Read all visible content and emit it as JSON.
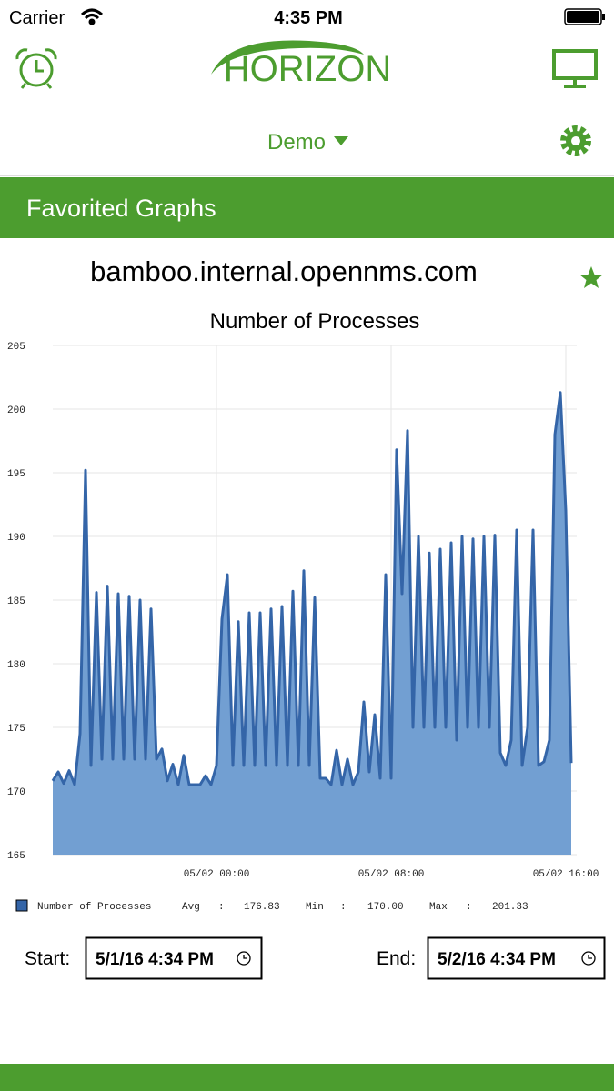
{
  "status_bar": {
    "carrier": "Carrier",
    "time": "4:35 PM"
  },
  "header": {
    "logo": "HORIZON",
    "selector": "Demo"
  },
  "section": {
    "title": "Favorited Graphs"
  },
  "graph": {
    "host": "bamboo.internal.opennms.com"
  },
  "chart_data": {
    "type": "area",
    "title": "Number of Processes",
    "x": [
      -7.5,
      -7.25,
      -7,
      -6.75,
      -6.5,
      -6.25,
      -6,
      -5.75,
      -5.5,
      -5.25,
      -5,
      -4.75,
      -4.5,
      -4.25,
      -4,
      -3.75,
      -3.5,
      -3.25,
      -3,
      -2.75,
      -2.5,
      -2.25,
      -2,
      -1.75,
      -1.5,
      -1.25,
      -1,
      -0.75,
      -0.5,
      -0.25,
      0,
      0.25,
      0.5,
      0.75,
      1,
      1.25,
      1.5,
      1.75,
      2,
      2.25,
      2.5,
      2.75,
      3,
      3.25,
      3.5,
      3.75,
      4,
      4.25,
      4.5,
      4.75,
      5,
      5.25,
      5.5,
      5.75,
      6,
      6.25,
      6.5,
      6.75,
      7,
      7.25,
      7.5,
      7.75,
      8,
      8.25,
      8.5,
      8.75,
      9,
      9.25,
      9.5,
      9.75,
      10,
      10.25,
      10.5,
      10.75,
      11,
      11.25,
      11.5,
      11.75,
      12,
      12.25,
      12.5,
      12.75,
      13,
      13.25,
      13.5,
      13.75,
      14,
      14.25,
      14.5,
      14.75,
      15,
      15.25,
      15.5,
      15.75,
      16,
      16.25
    ],
    "series": [
      {
        "name": "Number of Processes",
        "color": "#3465a8",
        "fill_color": "#729fd2",
        "values": [
          170.8,
          171.5,
          170.6,
          171.6,
          170.5,
          174.5,
          195.2,
          172,
          185.6,
          172.5,
          186.1,
          172.5,
          185.5,
          172.5,
          185.3,
          172.5,
          185,
          172.5,
          184.3,
          172.5,
          173.3,
          170.8,
          172.1,
          170.5,
          172.8,
          170.5,
          170.5,
          170.5,
          171.2,
          170.5,
          172,
          183.5,
          187,
          172,
          183.3,
          172,
          184,
          172,
          184,
          172,
          184.3,
          172,
          184.5,
          172,
          185.7,
          172,
          187.3,
          172,
          185.2,
          171,
          171,
          170.5,
          173.2,
          170.5,
          172.5,
          170.5,
          171.5,
          177,
          171.5,
          176,
          171,
          187,
          171,
          196.8,
          185.5,
          198.3,
          175,
          190,
          175,
          188.7,
          175,
          189,
          175,
          189.5,
          174,
          190,
          175,
          189.8,
          175,
          190,
          175,
          190.1,
          173,
          172,
          174,
          190.5,
          172,
          175,
          190.5,
          172,
          172.3,
          174,
          198,
          201.3,
          192,
          172.2
        ]
      }
    ],
    "xlim": [
      -7.5,
      16.5
    ],
    "xticks": [
      {
        "value": 0,
        "label": "05/02 00:00"
      },
      {
        "value": 8,
        "label": "05/02 08:00"
      },
      {
        "value": 16,
        "label": "05/02 16:00"
      }
    ],
    "ylim": [
      165,
      205
    ],
    "yticks": [
      165,
      170,
      175,
      180,
      185,
      190,
      195,
      200,
      205
    ],
    "grid": true,
    "stat_separator": ":",
    "stats": [
      {
        "label": "Avg",
        "value": "176.83"
      },
      {
        "label": "Min",
        "value": "170.00"
      },
      {
        "label": "Max",
        "value": "201.33"
      }
    ]
  },
  "range": {
    "start_label": "Start:",
    "start": "5/1/16 4:34 PM",
    "end_label": "End:",
    "end": "5/2/16 4:34 PM"
  }
}
